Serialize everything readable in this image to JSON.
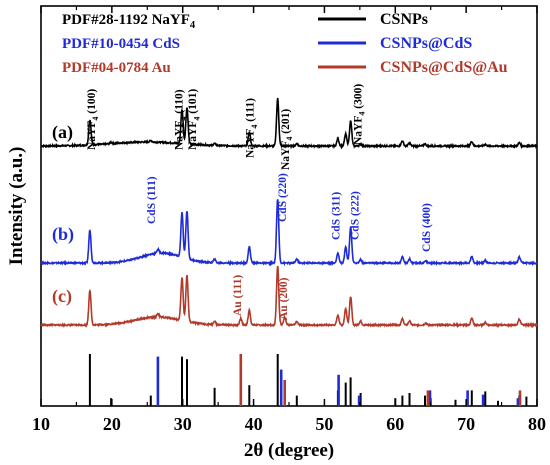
{
  "chart_data": {
    "type": "line",
    "xlabel": "2θ (degree)",
    "ylabel": "Intensity (a.u.)",
    "xlim": [
      10,
      80
    ],
    "xticks": [
      10,
      20,
      30,
      40,
      50,
      60,
      70,
      80
    ],
    "yticks_shown": false,
    "grid": false,
    "legend_position": "top-right",
    "reference_legend_position": "top-left",
    "references": [
      {
        "label": "PDF#28-1192 NaYF4",
        "color": "#000000"
      },
      {
        "label": "PDF#10-0454 CdS",
        "color": "#1f2bd6"
      },
      {
        "label": "PDF#04-0784 Au",
        "color": "#b23a2a"
      }
    ],
    "series": [
      {
        "name": "CSNPs",
        "panel": "(a)",
        "color": "#000000",
        "baseline": 0.0,
        "peaks": [
          [
            16.9,
            1.0
          ],
          [
            19.9,
            0.05
          ],
          [
            25.5,
            0.06
          ],
          [
            29.9,
            1.35
          ],
          [
            30.6,
            1.45
          ],
          [
            34.5,
            0.07
          ],
          [
            39.4,
            0.55
          ],
          [
            43.4,
            1.9
          ],
          [
            46.1,
            0.1
          ],
          [
            51.9,
            0.28
          ],
          [
            53.0,
            0.48
          ],
          [
            53.7,
            1.0
          ],
          [
            55.1,
            0.08
          ],
          [
            61.0,
            0.2
          ],
          [
            62.0,
            0.12
          ],
          [
            64.2,
            0.08
          ],
          [
            70.8,
            0.18
          ],
          [
            72.7,
            0.06
          ],
          [
            77.5,
            0.13
          ]
        ]
      },
      {
        "name": "CSNPs@CdS",
        "panel": "(b)",
        "color": "#1f2bd6",
        "baseline": 0.0,
        "peaks": [
          [
            16.9,
            1.0
          ],
          [
            26.5,
            0.12
          ],
          [
            29.9,
            1.35
          ],
          [
            30.6,
            1.45
          ],
          [
            34.5,
            0.1
          ],
          [
            39.4,
            0.5
          ],
          [
            43.4,
            1.95
          ],
          [
            46.1,
            0.12
          ],
          [
            51.9,
            0.3
          ],
          [
            53.0,
            0.5
          ],
          [
            53.7,
            1.1
          ],
          [
            55.1,
            0.1
          ],
          [
            61.0,
            0.18
          ],
          [
            62.0,
            0.12
          ],
          [
            64.3,
            0.06
          ],
          [
            70.8,
            0.2
          ],
          [
            72.7,
            0.08
          ],
          [
            77.5,
            0.18
          ]
        ]
      },
      {
        "name": "CSNPs@CdS@Au",
        "panel": "(c)",
        "color": "#b23a2a",
        "baseline": 0.0,
        "peaks": [
          [
            16.9,
            1.05
          ],
          [
            26.5,
            0.1
          ],
          [
            29.9,
            1.3
          ],
          [
            30.6,
            1.4
          ],
          [
            34.5,
            0.1
          ],
          [
            38.2,
            0.2
          ],
          [
            39.4,
            0.45
          ],
          [
            43.4,
            1.8
          ],
          [
            44.4,
            0.25
          ],
          [
            46.1,
            0.1
          ],
          [
            51.9,
            0.3
          ],
          [
            53.0,
            0.5
          ],
          [
            53.7,
            0.85
          ],
          [
            55.1,
            0.12
          ],
          [
            61.0,
            0.18
          ],
          [
            62.0,
            0.12
          ],
          [
            64.3,
            0.06
          ],
          [
            70.8,
            0.2
          ],
          [
            72.7,
            0.08
          ],
          [
            77.5,
            0.18
          ]
        ]
      }
    ],
    "reference_lines": [
      {
        "card": "NaYF4",
        "color": "#000000",
        "positions": [
          [
            16.9,
            1.0
          ],
          [
            19.9,
            0.15
          ],
          [
            25.5,
            0.2
          ],
          [
            29.9,
            0.95
          ],
          [
            30.6,
            0.9
          ],
          [
            34.5,
            0.35
          ],
          [
            39.4,
            0.4
          ],
          [
            43.4,
            1.0
          ],
          [
            46.1,
            0.2
          ],
          [
            51.9,
            0.3
          ],
          [
            53.0,
            0.45
          ],
          [
            53.7,
            0.55
          ],
          [
            55.1,
            0.25
          ],
          [
            60.0,
            0.15
          ],
          [
            61.0,
            0.2
          ],
          [
            62.0,
            0.25
          ],
          [
            64.2,
            0.2
          ],
          [
            65.0,
            0.15
          ],
          [
            68.5,
            0.12
          ],
          [
            70.8,
            0.3
          ],
          [
            72.7,
            0.28
          ],
          [
            74.5,
            0.1
          ],
          [
            77.5,
            0.2
          ],
          [
            78.5,
            0.18
          ]
        ]
      },
      {
        "card": "CdS",
        "color": "#1f2bd6",
        "positions": [
          [
            26.5,
            0.95
          ],
          [
            43.9,
            0.7
          ],
          [
            52.0,
            0.6
          ],
          [
            54.9,
            0.2
          ],
          [
            64.9,
            0.3
          ],
          [
            70.2,
            0.3
          ],
          [
            72.4,
            0.22
          ],
          [
            77.3,
            0.15
          ]
        ]
      },
      {
        "card": "Au",
        "color": "#b23a2a",
        "positions": [
          [
            38.2,
            1.0
          ],
          [
            44.4,
            0.5
          ],
          [
            64.6,
            0.3
          ],
          [
            77.6,
            0.3
          ]
        ]
      }
    ],
    "annotations": [
      {
        "text": "NaYF4 (100)",
        "x": 17.6,
        "color": "#000000",
        "panel": "(a)"
      },
      {
        "text": "NaYF4 (110)",
        "x": 30.0,
        "color": "#000000",
        "panel": "(a)"
      },
      {
        "text": "NaYF4 (101)",
        "x": 31.9,
        "color": "#000000",
        "panel": "(a)"
      },
      {
        "text": "NaYF4 (111)",
        "x": 40.0,
        "color": "#000000",
        "panel": "(a)"
      },
      {
        "text": "NaYF4 (201)",
        "x": 45.0,
        "color": "#000000",
        "panel": "(a)"
      },
      {
        "text": "NaYF4 (300)",
        "x": 55.2,
        "color": "#000000",
        "panel": "(a)"
      },
      {
        "text": "CdS (111)",
        "x": 26.1,
        "color": "#1f2bd6",
        "panel": "(b)"
      },
      {
        "text": "CdS (220)",
        "x": 44.6,
        "color": "#1f2bd6",
        "panel": "(b)"
      },
      {
        "text": "CdS (311)",
        "x": 52.1,
        "color": "#1f2bd6",
        "panel": "(b)"
      },
      {
        "text": "CdS (222)",
        "x": 54.8,
        "color": "#1f2bd6",
        "panel": "(b)"
      },
      {
        "text": "CdS (400)",
        "x": 64.9,
        "color": "#1f2bd6",
        "panel": "(b)"
      },
      {
        "text": "Au (111)",
        "x": 38.2,
        "color": "#b23a2a",
        "panel": "(c)"
      },
      {
        "text": "Au (200)",
        "x": 44.7,
        "color": "#b23a2a",
        "panel": "(c)"
      }
    ]
  }
}
